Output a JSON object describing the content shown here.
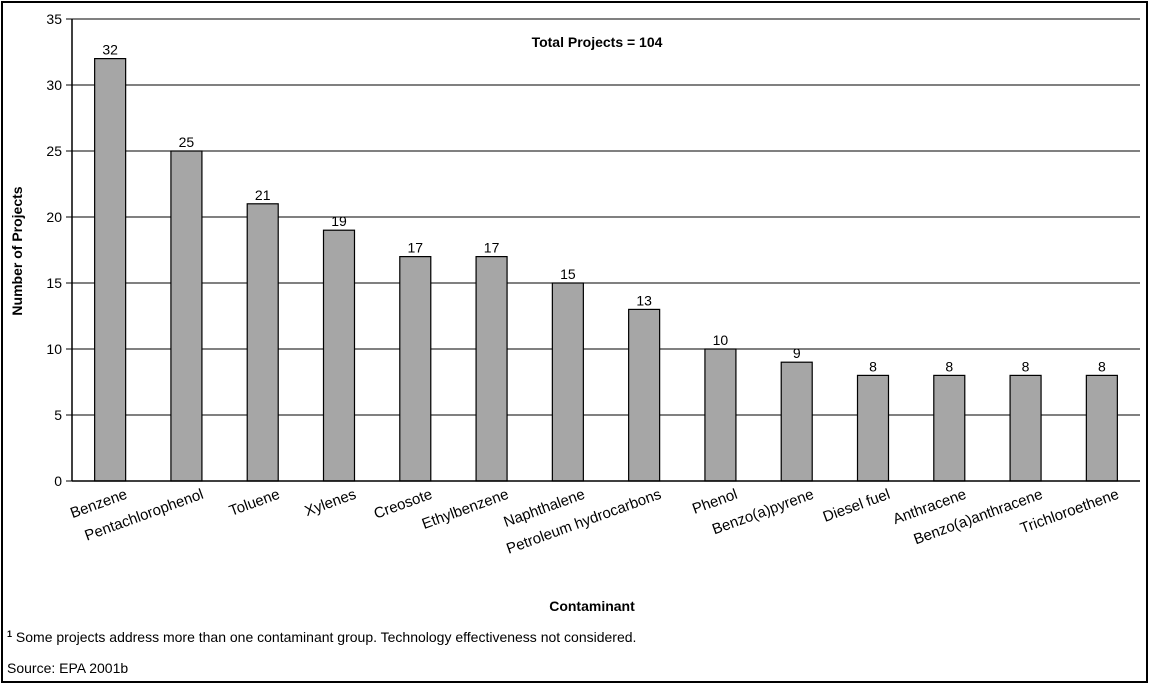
{
  "chart_data": {
    "type": "bar",
    "title": "Total Projects = 104",
    "xlabel": "Contaminant",
    "ylabel": "Number of Projects",
    "ylim": [
      0,
      35
    ],
    "yticks": [
      0,
      5,
      10,
      15,
      20,
      25,
      30,
      35
    ],
    "grid": true,
    "bar_color": "#a6a6a6",
    "categories": [
      "Benzene",
      "Pentachlorophenol",
      "Toluene",
      "Xylenes",
      "Creosote",
      "Ethylbenzene",
      "Naphthalene",
      "Petroleum hydrocarbons",
      "Phenol",
      "Benzo(a)pyrene",
      "Diesel fuel",
      "Anthracene",
      "Benzo(a)anthracene",
      "Trichloroethene"
    ],
    "values": [
      32,
      25,
      21,
      19,
      17,
      17,
      15,
      13,
      10,
      9,
      8,
      8,
      8,
      8
    ]
  },
  "footnotes": {
    "marker": "1",
    "note": "Some projects address more than one contaminant group.  Technology effectiveness not considered.",
    "source": "Source:  EPA 2001b"
  }
}
